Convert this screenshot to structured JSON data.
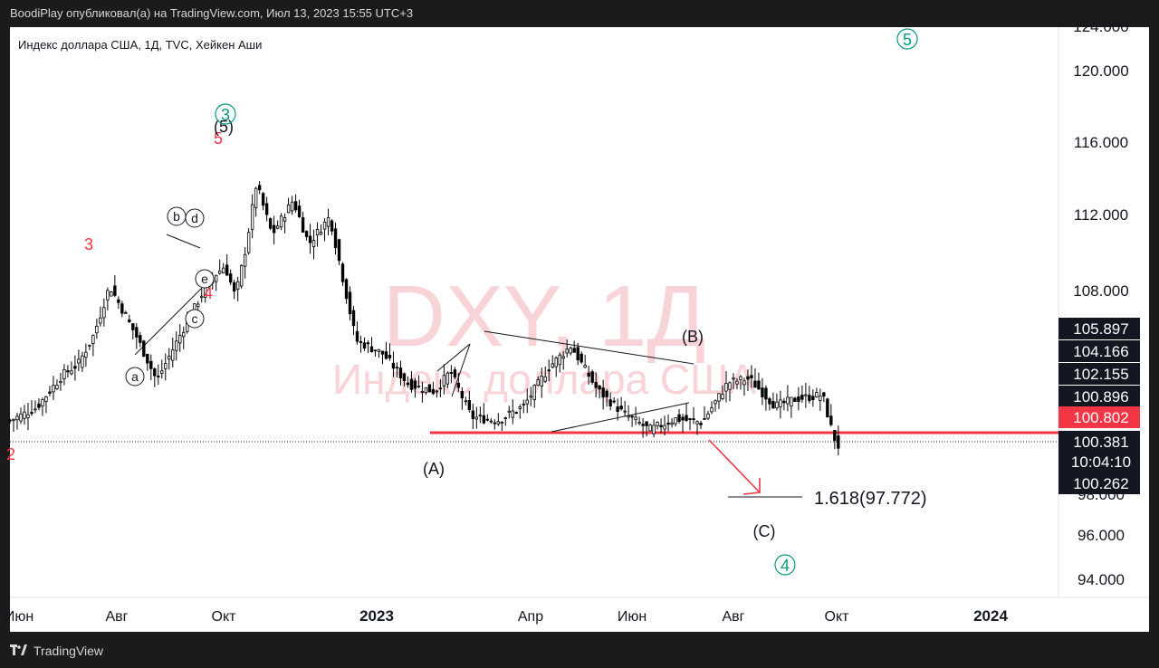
{
  "header": {
    "publish_line": "BoodiPlay опубликовал(а) на TradingView.com, Июл 13, 2023 15:55 UTC+3"
  },
  "footer": {
    "brand": "TradingView",
    "logo_icon": "tradingview-logo-icon"
  },
  "chart_data": {
    "type": "candlestick",
    "title": "Индекс доллара США, 1Д, TVC, Хейкен Аши",
    "watermark": {
      "symbol": "DXY, 1Д",
      "name": "Индекс доллара США"
    },
    "x_ticks": [
      "Июн",
      "Авг",
      "Окт",
      "2023",
      "Апр",
      "Июн",
      "Авг",
      "Окт",
      "2024"
    ],
    "y_ticks": [
      "120.000",
      "116.000",
      "112.000",
      "108.000",
      "96.000",
      "94.000"
    ],
    "y_cut_top_label": "124.000",
    "y_cut_mid_label": "98.000",
    "ylim": [
      92.2,
      122.2
    ],
    "price_path": [
      [
        0,
        101.8
      ],
      [
        0.025,
        102.5
      ],
      [
        0.05,
        104.3
      ],
      [
        0.065,
        104.9
      ],
      [
        0.08,
        106.5
      ],
      [
        0.095,
        109.2
      ],
      [
        0.12,
        106.5
      ],
      [
        0.14,
        104.0
      ],
      [
        0.165,
        106.8
      ],
      [
        0.19,
        109.5
      ],
      [
        0.205,
        110.3
      ],
      [
        0.215,
        108.6
      ],
      [
        0.225,
        111.3
      ],
      [
        0.235,
        114.8
      ],
      [
        0.25,
        112.0
      ],
      [
        0.27,
        113.9
      ],
      [
        0.285,
        111.5
      ],
      [
        0.305,
        113.0
      ],
      [
        0.33,
        106.2
      ],
      [
        0.355,
        105.5
      ],
      [
        0.38,
        103.8
      ],
      [
        0.405,
        103.4
      ],
      [
        0.42,
        104.5
      ],
      [
        0.44,
        102.0
      ],
      [
        0.465,
        101.8
      ],
      [
        0.49,
        102.6
      ],
      [
        0.515,
        104.8
      ],
      [
        0.535,
        105.9
      ],
      [
        0.56,
        103.5
      ],
      [
        0.585,
        102.2
      ],
      [
        0.61,
        101.3
      ],
      [
        0.635,
        101.9
      ],
      [
        0.66,
        101.7
      ],
      [
        0.685,
        103.9
      ],
      [
        0.705,
        104.1
      ],
      [
        0.73,
        102.6
      ],
      [
        0.75,
        103.0
      ],
      [
        0.775,
        103.2
      ],
      [
        0.785,
        101.0
      ],
      [
        0.79,
        100.4
      ]
    ],
    "price_labels": [
      {
        "value": "105.897",
        "color": "#131722"
      },
      {
        "value": "104.166",
        "color": "#131722"
      },
      {
        "value": "102.155",
        "color": "#131722"
      },
      {
        "value": "100.896",
        "color": "#131722"
      },
      {
        "value": "100.802",
        "color": "#f23645"
      },
      {
        "value": "100.381",
        "color": "#131722"
      },
      {
        "value": "10:04:10",
        "color": "#131722"
      },
      {
        "value": "100.262",
        "color": "#131722"
      }
    ],
    "support_level": 100.6,
    "fib_target": "1.618(97.772)",
    "wave_labels": {
      "red": [
        "3",
        "4",
        "5",
        "2"
      ],
      "black_circled": [
        "a",
        "b",
        "c",
        "d",
        "e"
      ],
      "black_paren": [
        "(5)",
        "(A)",
        "(B)",
        "(C)"
      ],
      "teal_circled": [
        "3",
        "4",
        "5"
      ]
    },
    "colors": {
      "bull": "#26a69a",
      "bear": "#000000",
      "candle": "#000000",
      "red": "#f23645",
      "teal": "#089981",
      "watermark": "#f8d4d8"
    }
  }
}
